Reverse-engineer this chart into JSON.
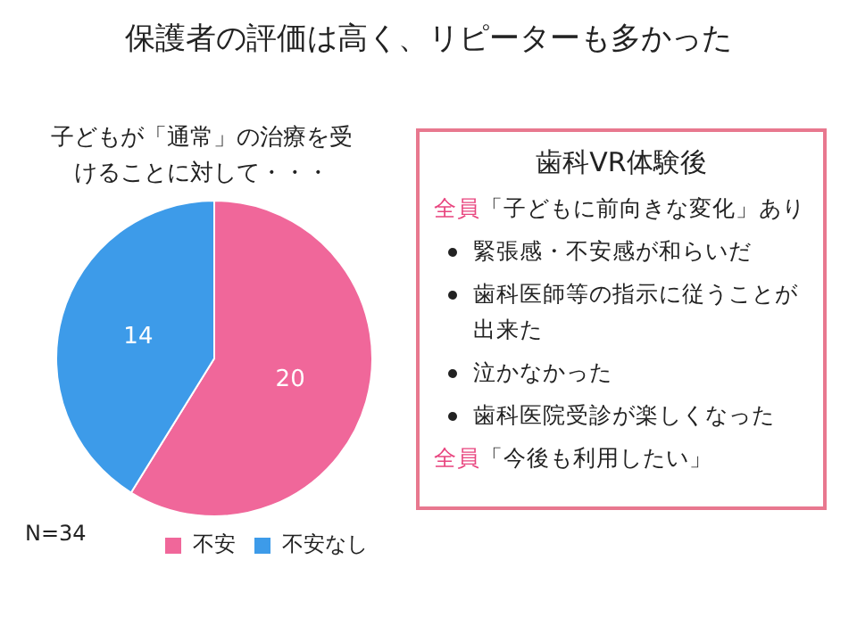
{
  "chart_data": [
    {
      "type": "pie",
      "title": "保護者の評価は高く、リピーターも多かった",
      "subtitle": "子どもが「通常」の治療を受けることに対して・・・",
      "categories": [
        "不安",
        "不安なし"
      ],
      "values": [
        20,
        14
      ],
      "colors": [
        "#f0679a",
        "#3d9be9"
      ],
      "data_labels": true,
      "legend": "bottom",
      "annotations": [
        "N=34"
      ]
    },
    {
      "type": "other",
      "title": "歯科VR体験後",
      "annotations": [
        "全員「子どもに前向きな変化」あり",
        "緊張感・不安感が和らいだ",
        "歯科医師等の指示に従うことが出来た",
        "泣かなかった",
        "歯科医院受診が楽しくなった",
        "全員「今後も利用したい」"
      ]
    }
  ]
}
